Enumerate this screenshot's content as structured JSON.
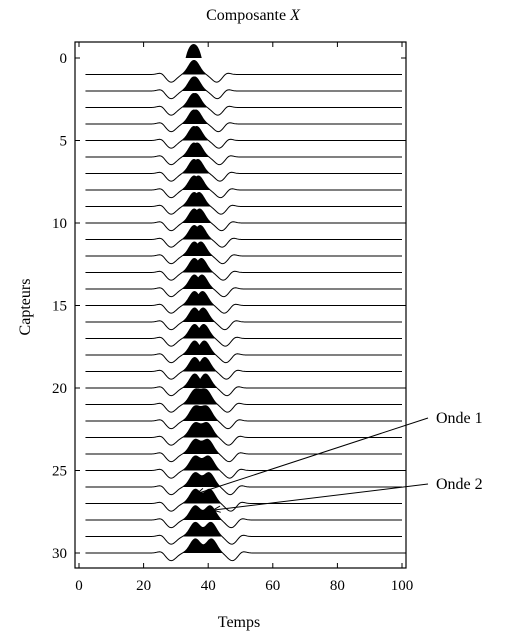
{
  "chart_data": {
    "type": "seismic wiggle traces",
    "title": "Composante",
    "title_var": "X",
    "xlabel": "Temps",
    "ylabel": "Capteurs",
    "xlim": [
      0,
      100
    ],
    "ylim": [
      0,
      31
    ],
    "y_inverted": true,
    "grid": false,
    "x_ticks": [
      0,
      20,
      40,
      60,
      80,
      100
    ],
    "y_ticks": [
      0,
      5,
      10,
      15,
      20,
      25,
      30
    ],
    "trace_sensors": [
      1,
      2,
      3,
      4,
      5,
      6,
      7,
      8,
      9,
      10,
      11,
      12,
      13,
      14,
      15,
      16,
      17,
      18,
      19,
      20,
      21,
      22,
      23,
      24,
      25,
      26,
      27,
      28,
      29,
      30
    ],
    "trace_time_range": [
      2,
      100
    ],
    "wave_1": {
      "time_at_sensor_0": 35.5,
      "time_at_sensor_30": 36.0
    },
    "wave_2": {
      "time_at_sensor_0": 35.5,
      "time_at_sensor_30": 41.0
    },
    "side_lobes": {
      "time_at_sensor_0": [
        28.5,
        42.5
      ],
      "time_at_sensor_30": [
        28.5,
        47.5
      ]
    },
    "annotations": [
      {
        "text": "Onde 1",
        "points_to": {
          "x": 36.5,
          "sensor": 26.4
        }
      },
      {
        "text": "Onde 2",
        "points_to": {
          "x": 41.5,
          "sensor": 27.4
        }
      }
    ]
  }
}
